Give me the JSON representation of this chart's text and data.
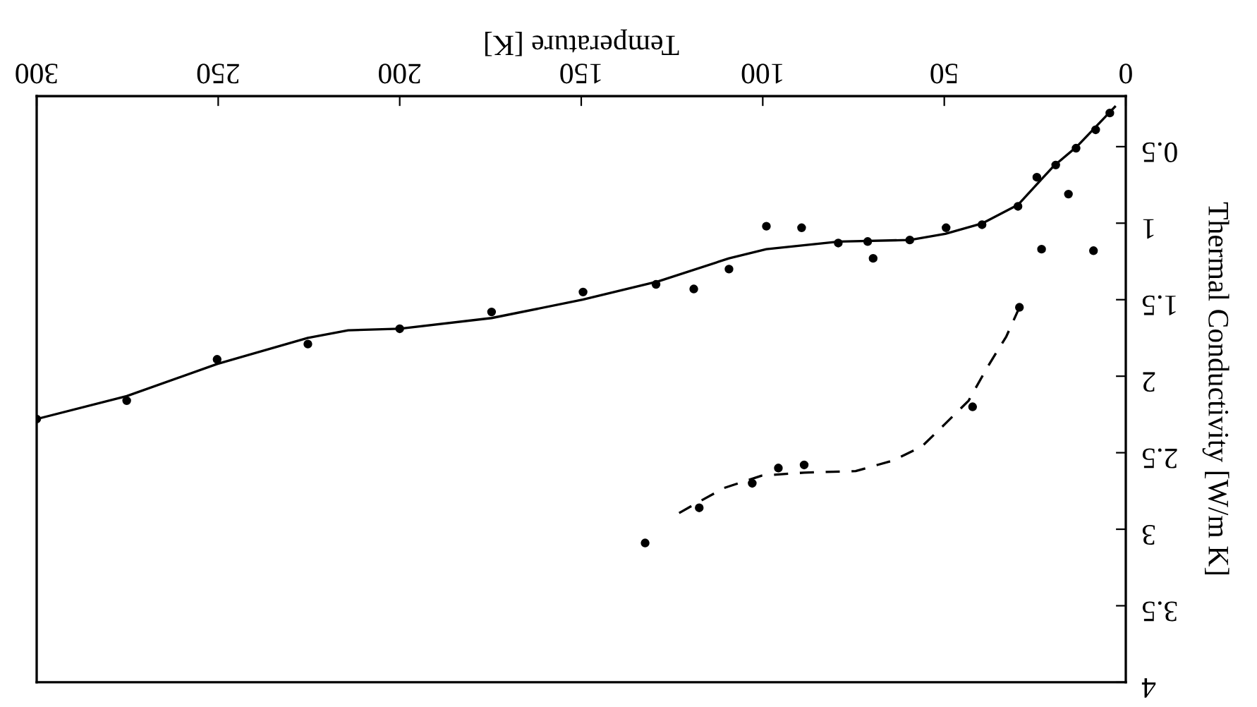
{
  "chart_data": {
    "type": "scatter",
    "xlabel": "Temperature [K]",
    "ylabel": "Thermal Conductivity [W/m K]",
    "xlim": [
      300,
      0
    ],
    "ylim": [
      4,
      0.17
    ],
    "xticks": [
      0,
      50,
      100,
      150,
      200,
      250,
      300
    ],
    "yticks": [
      0.5,
      1,
      1.5,
      2,
      2.5,
      3,
      3.5,
      4
    ],
    "series": [
      {
        "color": "#000000",
        "marker": "circle",
        "x": [
          4.4,
          8.3,
          13.7,
          19.3,
          24.5,
          15.8,
          29.7,
          39.6,
          49.5,
          23.2,
          8.9,
          59.5,
          71.1,
          69.6,
          79.2,
          89.3,
          99.0,
          109.3,
          119.0,
          129.4,
          149.5,
          174.7,
          200.0,
          225.3,
          250.3,
          275.2,
          300
        ],
        "values": [
          0.28,
          0.39,
          0.51,
          0.62,
          0.7,
          0.81,
          0.89,
          1.01,
          1.03,
          1.17,
          1.18,
          1.11,
          1.12,
          1.23,
          1.13,
          1.03,
          1.02,
          1.3,
          1.43,
          1.4,
          1.45,
          1.58,
          1.69,
          1.79,
          1.89,
          2.16,
          2.28
        ]
      },
      {
        "type": "line",
        "color": "#000000",
        "line_style": "solid",
        "x": [
          3,
          13.5,
          20,
          29.7,
          39.4,
          49.7,
          59.5,
          79,
          99,
          109.3,
          128.7,
          149.6,
          174.7,
          200,
          214.2,
          225.3,
          250.3,
          275.2,
          300
        ],
        "values": [
          0.24,
          0.5,
          0.63,
          0.88,
          1.0,
          1.07,
          1.11,
          1.12,
          1.17,
          1.23,
          1.38,
          1.5,
          1.62,
          1.69,
          1.7,
          1.75,
          1.92,
          2.13,
          2.28
        ]
      },
      {
        "color": "#000000",
        "marker": "circle",
        "x": [
          29.3,
          42.2,
          88.6,
          95.7,
          102.9,
          117.5,
          132.4
        ],
        "values": [
          1.55,
          2.2,
          2.58,
          2.6,
          2.7,
          2.86,
          3.09
        ]
      },
      {
        "type": "line",
        "color": "#000000",
        "line_style": "dashed",
        "x": [
          29.3,
          32.9,
          38.1,
          43.3,
          49.7,
          56.2,
          64,
          74.4,
          88.6,
          100.3,
          110.6,
          117.5,
          124.2
        ],
        "values": [
          1.55,
          1.74,
          1.94,
          2.16,
          2.31,
          2.46,
          2.55,
          2.62,
          2.63,
          2.65,
          2.73,
          2.82,
          2.91
        ]
      }
    ]
  }
}
